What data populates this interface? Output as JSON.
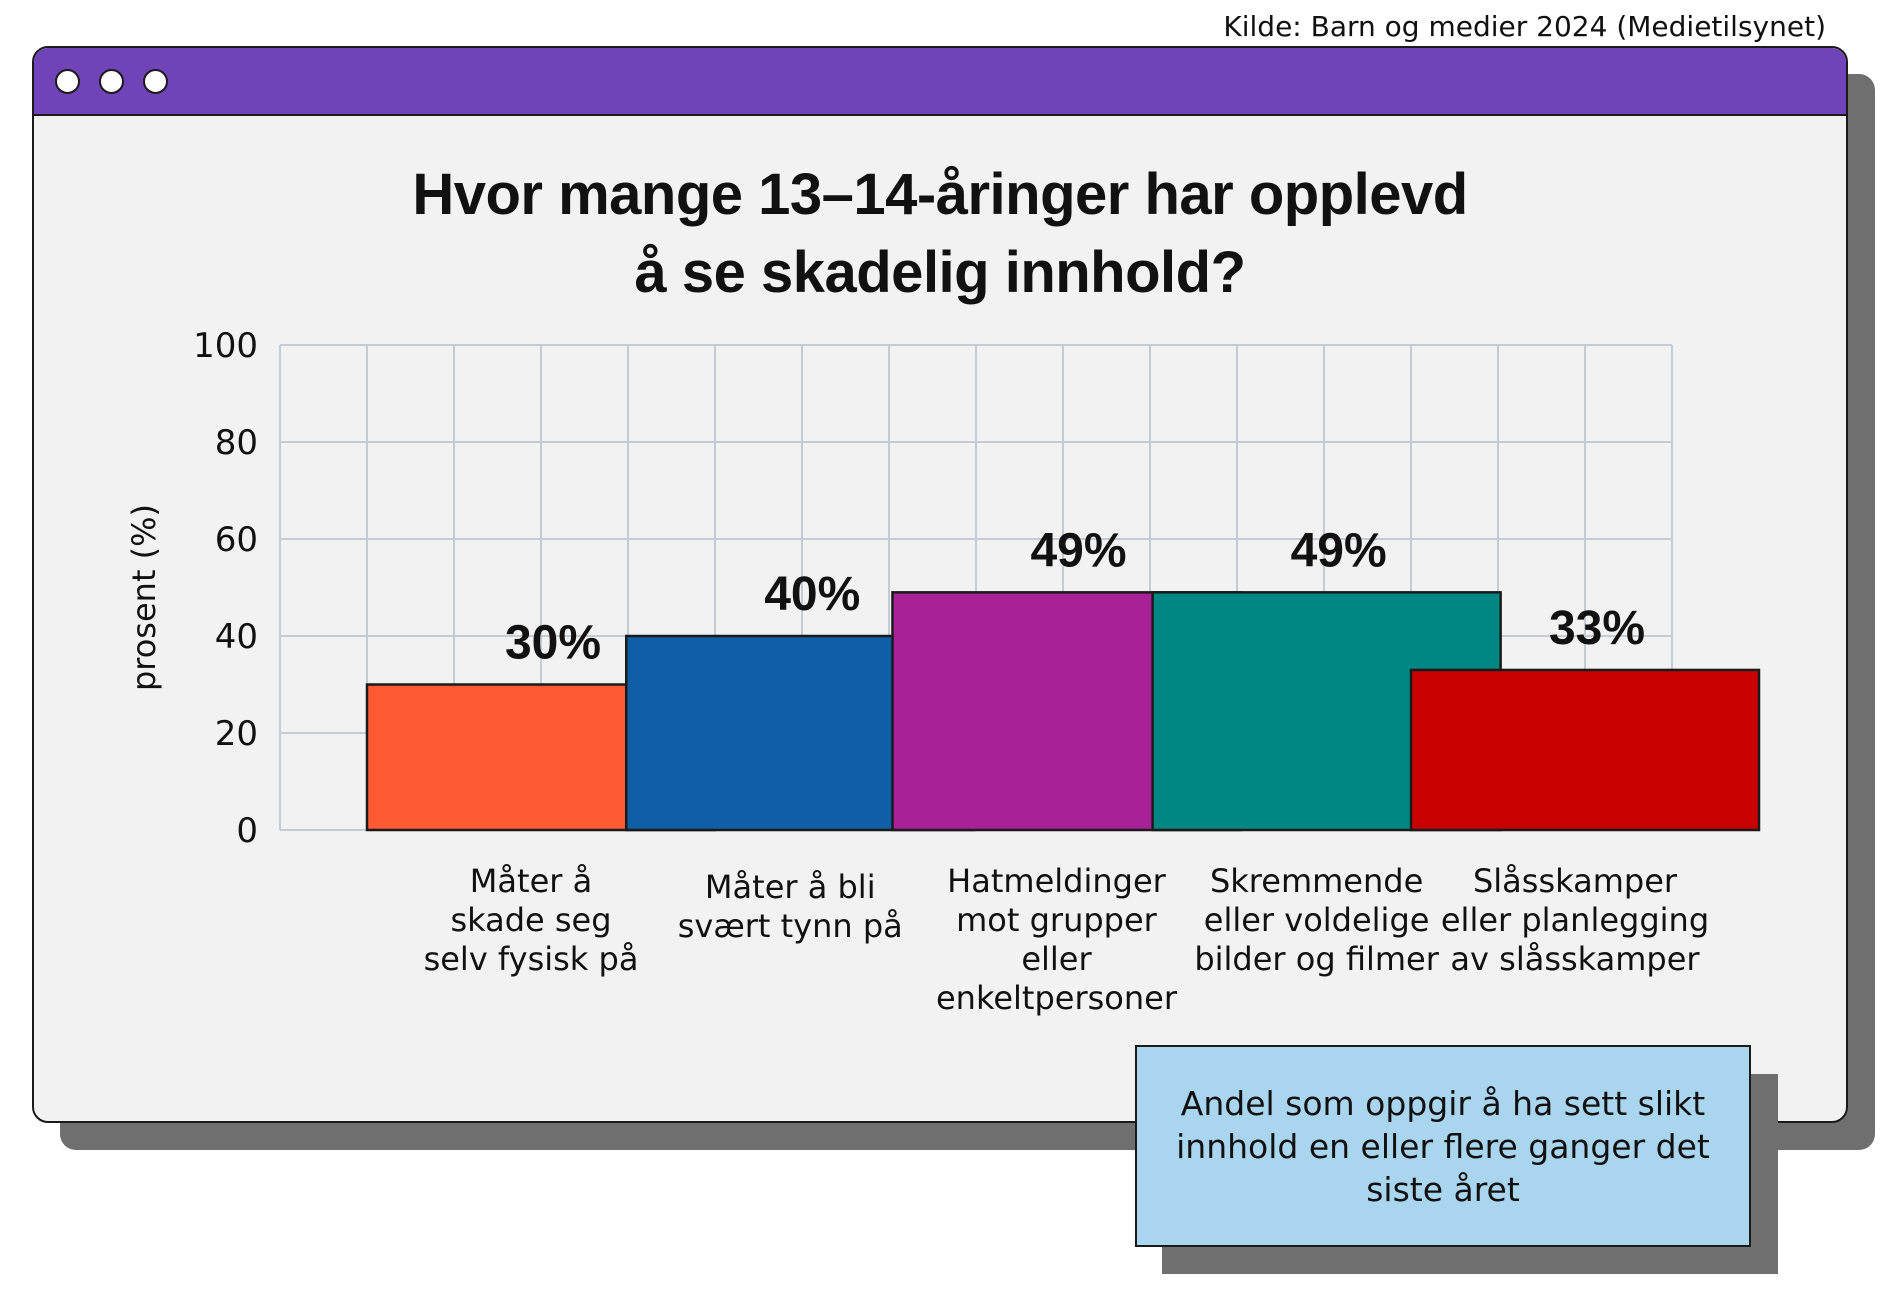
{
  "source": "Kilde: Barn og medier 2024 (Medietilsynet)",
  "window": {
    "title_lines": [
      "Hvor mange 13–14-åringer har opplevd",
      "å se skadelig innhold?"
    ]
  },
  "note": "Andel som oppgir å ha sett slikt innhold en eller flere ganger det siste året",
  "colors": {
    "titlebar": "#7043b8",
    "note_bg": "#a9d5ee",
    "window_bg": "#f2f2f2",
    "grid": "#c3ccd6"
  },
  "chart_data": {
    "type": "bar",
    "title": "Hvor mange 13–14-åringer har opplevd å se skadelig innhold?",
    "ylabel": "prosent (%)",
    "xlabel": "",
    "ylim": [
      0,
      100
    ],
    "yticks": [
      0,
      20,
      40,
      60,
      80,
      100
    ],
    "grid": true,
    "categories": [
      [
        "Måter å",
        "skade seg",
        "selv fysisk på"
      ],
      [
        "Måter å bli",
        "svært tynn på"
      ],
      [
        "Hatmeldinger",
        "mot grupper",
        "eller",
        "enkeltpersoner"
      ],
      [
        "Skremmende",
        "eller voldelige",
        "bilder og filmer"
      ],
      [
        "Slåsskamper",
        "eller planlegging",
        "av slåsskamper"
      ]
    ],
    "values": [
      30,
      40,
      49,
      49,
      33
    ],
    "data_labels": [
      "30%",
      "40%",
      "49%",
      "49%",
      "33%"
    ],
    "bar_colors": [
      "#ff5a33",
      "#0e5fa6",
      "#a92196",
      "#008784",
      "#c80000"
    ]
  }
}
